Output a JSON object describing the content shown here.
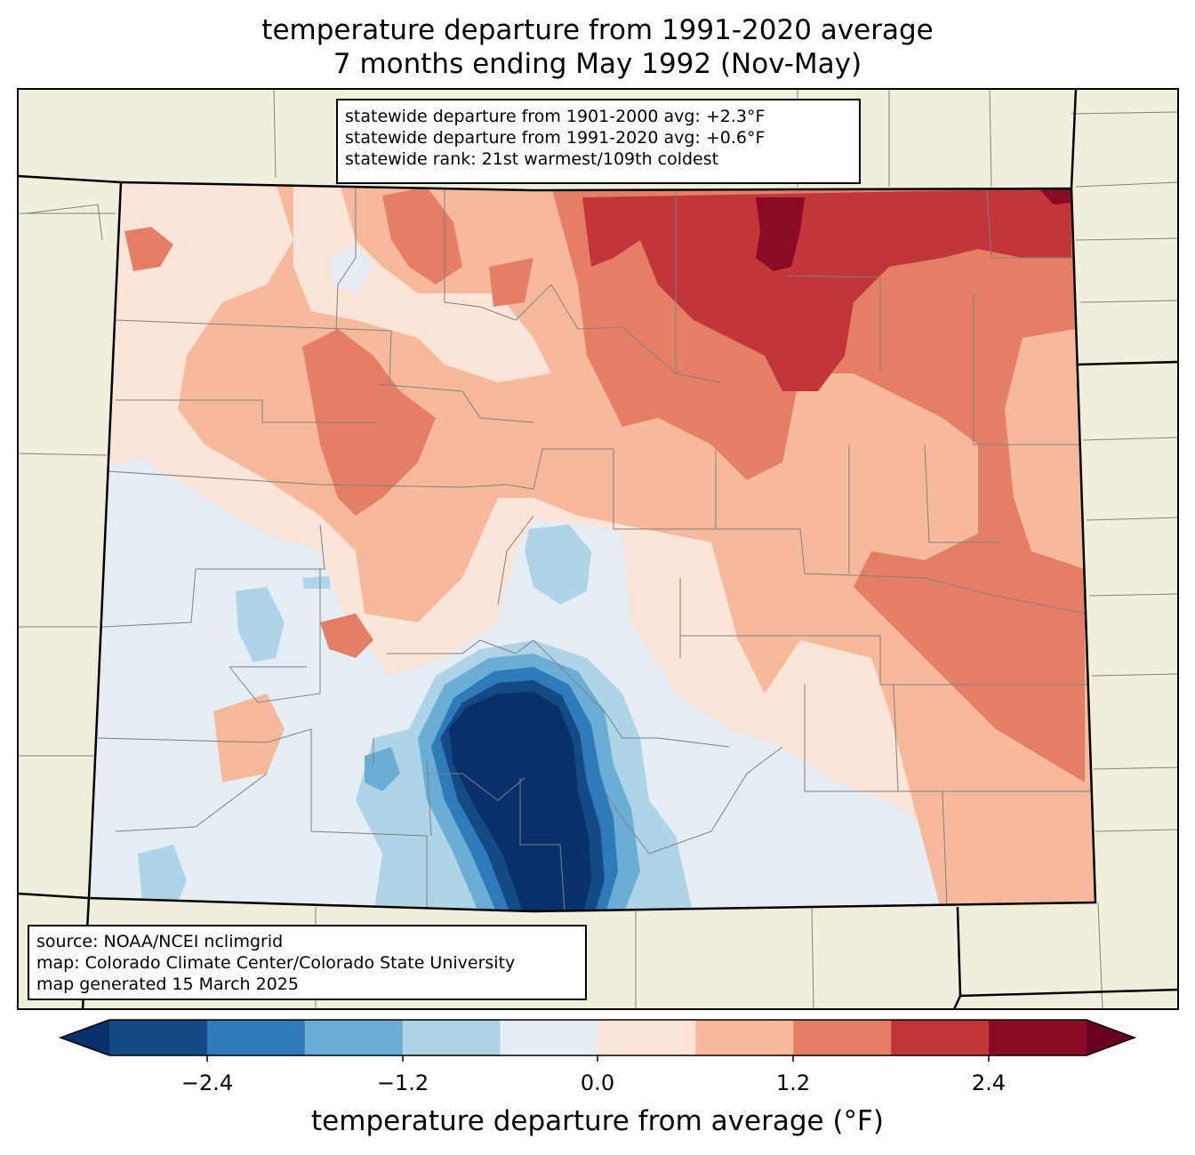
{
  "title": {
    "line1": "temperature departure from 1991-2020 average",
    "line2": "7 months ending May 1992 (Nov-May)"
  },
  "stats": {
    "line1": "statewide departure from 1901-2000 avg: +2.3°F",
    "line2": "statewide departure from 1991-2020 avg: +0.6°F",
    "line3": "statewide rank: 21st warmest/109th coldest"
  },
  "source": {
    "line1": "source: NOAA/NCEI nclimgrid",
    "line2": "map: Colorado Climate Center/Colorado State University",
    "line3": "map generated 15 March 2025"
  },
  "colorbar": {
    "label": "temperature departure from average (°F)",
    "ticks": [
      "−2.4",
      "−1.2",
      "0.0",
      "1.2",
      "2.4"
    ],
    "colors": [
      "#08306b",
      "#134a86",
      "#2f7ab9",
      "#6aaed6",
      "#b0d4e7",
      "#e5edf5",
      "#fbe4d8",
      "#f7b99b",
      "#e47e64",
      "#c23639",
      "#8a0c24",
      "#67001f"
    ],
    "range": [
      -3.0,
      3.0
    ],
    "step": 0.6
  },
  "map": {
    "state": "Colorado",
    "background_color": "#efefdc",
    "boundary_color": "#000000",
    "county_line_color": "#808080"
  }
}
